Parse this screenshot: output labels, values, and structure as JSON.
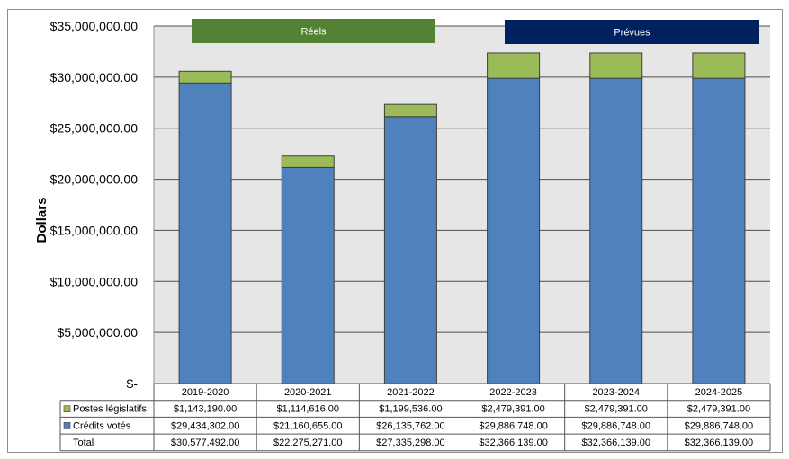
{
  "chart_data": {
    "type": "bar",
    "stacked": true,
    "ylabel": "Dollars",
    "ylim": [
      0,
      35000000
    ],
    "ytick_labels": [
      "$-",
      "$5,000,000.00",
      "$10,000,000.00",
      "$15,000,000.00",
      "$20,000,000.00",
      "$25,000,000.00",
      "$30,000,000.00",
      "$35,000,000.00"
    ],
    "categories": [
      "2019-2020",
      "2020-2021",
      "2021-2022",
      "2022-2023",
      "2023-2024",
      "2024-2025"
    ],
    "grid": true,
    "legend": "data-table",
    "period_labels": [
      {
        "label": "Réels",
        "color": "#548235"
      },
      {
        "label": "Prévues",
        "color": "#002060"
      }
    ],
    "series": [
      {
        "name": "Crédits votés",
        "color": "#4f81bd",
        "values": [
          29434302,
          21160655,
          26135762,
          29886748,
          29886748,
          29886748
        ],
        "labels": [
          "$29,434,302.00",
          "$21,160,655.00",
          "$26,135,762.00",
          "$29,886,748.00",
          "$29,886,748.00",
          "$29,886,748.00"
        ]
      },
      {
        "name": "Postes législatifs",
        "color": "#9bbb59",
        "values": [
          1143190,
          1114616,
          1199536,
          2479391,
          2479391,
          2479391
        ],
        "labels": [
          "$1,143,190.00",
          "$1,114,616.00",
          "$1,199,536.00",
          "$2,479,391.00",
          "$2,479,391.00",
          "$2,479,391.00"
        ]
      }
    ],
    "total": {
      "name": "Total",
      "values": [
        30577492,
        22275271,
        27335298,
        32366139,
        32366139,
        32366139
      ],
      "labels": [
        "$30,577,492.00",
        "$22,275,271.00",
        "$27,335,298.00",
        "$32,366,139.00",
        "$32,366,139.00",
        "$32,366,139.00"
      ]
    },
    "colors": {
      "plot_bg": "#e6e6e6",
      "grid": "#4d4d4d",
      "outline": "#404040"
    }
  }
}
